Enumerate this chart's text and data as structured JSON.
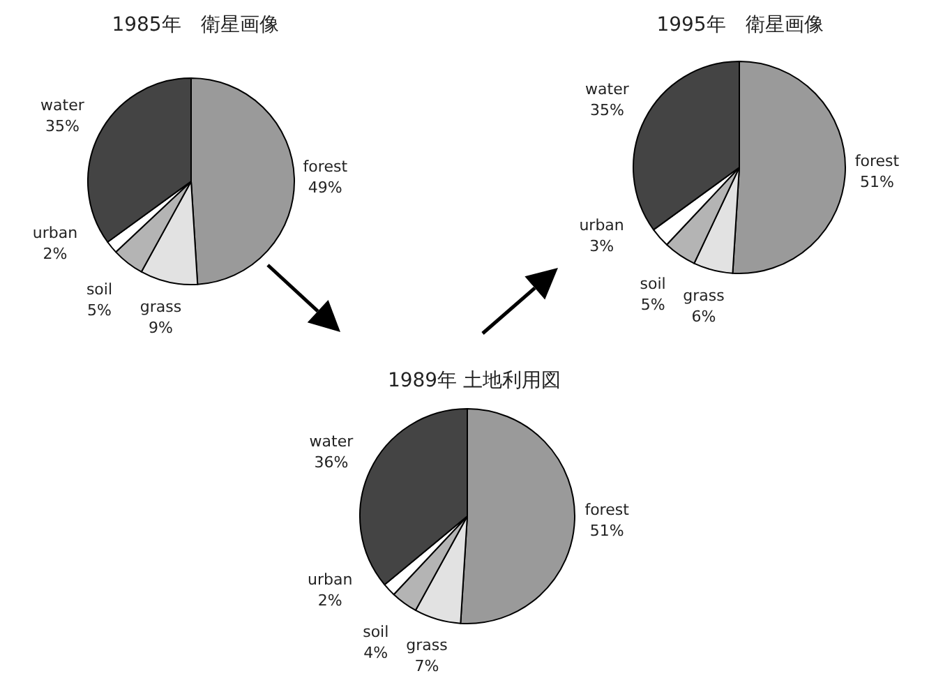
{
  "chart_data": [
    {
      "type": "pie",
      "title": "1985年　衛星画像",
      "categories": [
        "forest",
        "grass",
        "soil",
        "urban",
        "water"
      ],
      "values": [
        49,
        9,
        5,
        2,
        35
      ],
      "value_labels": [
        "49%",
        "9%",
        "5%",
        "2%",
        "35%"
      ],
      "colors": [
        "#9a9a9a",
        "#e2e2e2",
        "#b4b4b4",
        "#ffffff",
        "#444444"
      ]
    },
    {
      "type": "pie",
      "title": "1995年　衛星画像",
      "categories": [
        "forest",
        "grass",
        "soil",
        "urban",
        "water"
      ],
      "values": [
        51,
        6,
        5,
        3,
        35
      ],
      "value_labels": [
        "51%",
        "6%",
        "5%",
        "3%",
        "35%"
      ],
      "colors": [
        "#9a9a9a",
        "#e2e2e2",
        "#b4b4b4",
        "#ffffff",
        "#444444"
      ]
    },
    {
      "type": "pie",
      "title": "1989年 土地利用図",
      "categories": [
        "forest",
        "grass",
        "soil",
        "urban",
        "water"
      ],
      "values": [
        51,
        7,
        4,
        2,
        36
      ],
      "value_labels": [
        "51%",
        "7%",
        "4%",
        "2%",
        "36%"
      ],
      "colors": [
        "#9a9a9a",
        "#e2e2e2",
        "#b4b4b4",
        "#ffffff",
        "#444444"
      ]
    }
  ]
}
